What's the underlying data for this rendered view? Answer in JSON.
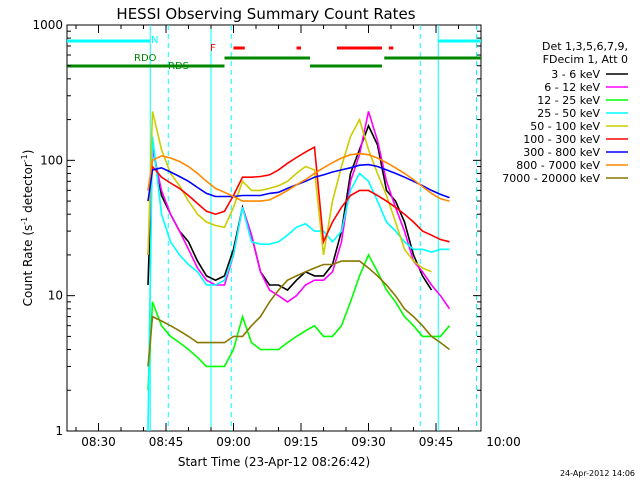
{
  "chart_data": {
    "type": "line",
    "title": "HESSI Observing Summary Count Rates",
    "xlabel": "Start Time (23-Apr-12 08:26:42)",
    "ylabel": "Count Rate (s",
    "ylabel_sup1": "-1",
    "ylabel_mid": " detector",
    "ylabel_sup2": "-1",
    "ylabel_end": ")",
    "yscale": "log",
    "ylim": [
      1,
      1000
    ],
    "xlim_minutes": [
      503,
      595
    ],
    "x_ticks": [
      {
        "label": "08:30",
        "minute": 510
      },
      {
        "label": "08:45",
        "minute": 525
      },
      {
        "label": "09:00",
        "minute": 540
      },
      {
        "label": "09:15",
        "minute": 555
      },
      {
        "label": "09:30",
        "minute": 570
      },
      {
        "label": "09:45",
        "minute": 585
      },
      {
        "label": "10:00",
        "minute": 600
      }
    ],
    "y_ticks": [
      {
        "label": "1",
        "value": 1
      },
      {
        "label": "10",
        "value": 10
      },
      {
        "label": "100",
        "value": 100
      },
      {
        "label": "1000",
        "value": 1000
      }
    ],
    "legend_header": [
      "Det 1,3,5,6,7,9,",
      "FDecim 1, Att 0"
    ],
    "series": [
      {
        "name": "3 - 6 keV",
        "color": "#000000",
        "x": [
          521,
          522,
          524,
          526,
          528,
          530,
          532,
          534,
          536,
          538,
          540,
          542,
          544,
          546,
          548,
          550,
          552,
          554,
          556,
          558,
          560,
          562,
          564,
          566,
          568,
          570,
          572,
          574,
          576,
          578,
          580,
          582,
          584
        ],
        "y": [
          12,
          130,
          55,
          40,
          30,
          25,
          18,
          14,
          13,
          14,
          22,
          45,
          28,
          15,
          12,
          12,
          11,
          13,
          15,
          14,
          14,
          17,
          30,
          80,
          120,
          180,
          130,
          60,
          50,
          35,
          20,
          14,
          11
        ]
      },
      {
        "name": "6 - 12 keV",
        "color": "#ff00ff",
        "x": [
          521,
          522,
          524,
          526,
          528,
          530,
          532,
          534,
          536,
          538,
          540,
          542,
          544,
          546,
          548,
          550,
          552,
          554,
          556,
          558,
          560,
          562,
          564,
          566,
          568,
          570,
          572,
          574,
          576,
          578,
          580,
          582,
          584,
          586,
          588
        ],
        "y": [
          20,
          120,
          60,
          40,
          30,
          22,
          16,
          13,
          12,
          12,
          20,
          45,
          28,
          15,
          11,
          10,
          9,
          10,
          12,
          13,
          13,
          15,
          25,
          70,
          110,
          230,
          140,
          70,
          45,
          30,
          18,
          15,
          12,
          10,
          8
        ]
      },
      {
        "name": "12 - 25 keV",
        "color": "#00ff00",
        "x": [
          521,
          522,
          524,
          526,
          528,
          530,
          532,
          534,
          536,
          538,
          540,
          542,
          544,
          546,
          548,
          550,
          552,
          554,
          556,
          558,
          560,
          562,
          564,
          566,
          568,
          570,
          572,
          574,
          576,
          578,
          580,
          582,
          584,
          586,
          588
        ],
        "y": [
          2,
          9,
          6,
          5,
          4.5,
          4,
          3.5,
          3,
          3,
          3,
          4,
          7,
          4.5,
          4,
          4,
          4,
          4.5,
          5,
          5.5,
          6,
          5,
          5,
          6,
          9,
          14,
          20,
          15,
          11,
          9,
          7,
          6,
          5,
          5,
          5,
          6
        ]
      },
      {
        "name": "25 - 50 keV",
        "color": "#00ffff",
        "x": [
          521,
          522,
          524,
          526,
          528,
          530,
          532,
          534,
          536,
          538,
          540,
          542,
          544,
          546,
          548,
          550,
          552,
          554,
          556,
          558,
          560,
          562,
          564,
          566,
          568,
          570,
          572,
          574,
          576,
          578,
          580,
          582,
          584,
          586,
          588
        ],
        "y": [
          1,
          150,
          40,
          25,
          20,
          17,
          15,
          12,
          12,
          13,
          20,
          45,
          25,
          24,
          24,
          25,
          28,
          32,
          34,
          30,
          30,
          25,
          30,
          60,
          80,
          70,
          50,
          35,
          30,
          25,
          22,
          22,
          21,
          22,
          22
        ]
      },
      {
        "name": "50 - 100 keV",
        "color": "#cccc00",
        "x": [
          521,
          522,
          524,
          526,
          528,
          530,
          532,
          534,
          536,
          538,
          540,
          542,
          544,
          546,
          548,
          550,
          552,
          554,
          556,
          558,
          560,
          562,
          564,
          566,
          568,
          570,
          572,
          574,
          576,
          578,
          580,
          582,
          584
        ],
        "y": [
          20,
          230,
          120,
          80,
          65,
          50,
          40,
          35,
          33,
          32,
          45,
          70,
          60,
          60,
          62,
          65,
          70,
          80,
          90,
          85,
          20,
          50,
          90,
          150,
          200,
          120,
          80,
          55,
          35,
          22,
          18,
          16,
          15
        ]
      },
      {
        "name": "100 - 300 keV",
        "color": "#ff0000",
        "x": [
          521,
          522,
          524,
          526,
          528,
          530,
          532,
          534,
          536,
          538,
          540,
          542,
          544,
          546,
          548,
          550,
          552,
          554,
          556,
          558,
          560,
          562,
          564,
          566,
          568,
          570,
          572,
          574,
          576,
          578,
          580,
          582,
          584,
          586,
          588
        ],
        "y": [
          60,
          90,
          75,
          68,
          62,
          55,
          48,
          42,
          40,
          42,
          55,
          75,
          75,
          76,
          78,
          85,
          95,
          105,
          115,
          125,
          25,
          35,
          45,
          55,
          60,
          60,
          55,
          50,
          45,
          40,
          35,
          30,
          28,
          26,
          25
        ]
      },
      {
        "name": "300 - 800 keV",
        "color": "#0000ff",
        "x": [
          521,
          522,
          524,
          526,
          528,
          530,
          532,
          534,
          536,
          538,
          540,
          542,
          544,
          546,
          548,
          550,
          552,
          554,
          556,
          558,
          560,
          562,
          564,
          566,
          568,
          570,
          572,
          574,
          576,
          578,
          580,
          582,
          584,
          586,
          588
        ],
        "y": [
          50,
          85,
          88,
          82,
          76,
          70,
          63,
          57,
          54,
          54,
          54,
          55,
          55,
          55,
          57,
          58,
          62,
          66,
          70,
          75,
          78,
          82,
          85,
          88,
          92,
          93,
          90,
          85,
          80,
          75,
          70,
          65,
          60,
          56,
          53
        ]
      },
      {
        "name": "800 - 7000 keV",
        "color": "#ff8800",
        "x": [
          521,
          522,
          524,
          526,
          528,
          530,
          532,
          534,
          536,
          538,
          540,
          542,
          544,
          546,
          548,
          550,
          552,
          554,
          556,
          558,
          560,
          562,
          564,
          566,
          568,
          570,
          572,
          574,
          576,
          578,
          580,
          582,
          584,
          586,
          588
        ],
        "y": [
          60,
          100,
          108,
          104,
          98,
          90,
          80,
          70,
          62,
          58,
          54,
          50,
          50,
          50,
          51,
          55,
          60,
          66,
          72,
          80,
          88,
          96,
          104,
          110,
          112,
          110,
          104,
          96,
          88,
          80,
          72,
          64,
          57,
          52,
          50
        ]
      },
      {
        "name": "7000 - 20000 keV",
        "color": "#887700",
        "x": [
          521,
          522,
          524,
          526,
          528,
          530,
          532,
          534,
          536,
          538,
          540,
          542,
          544,
          546,
          548,
          550,
          552,
          554,
          556,
          558,
          560,
          562,
          564,
          566,
          568,
          570,
          572,
          574,
          576,
          578,
          580,
          582,
          584,
          586,
          588
        ],
        "y": [
          3,
          7,
          6.5,
          6,
          5.5,
          5,
          4.5,
          4.5,
          4.5,
          4.5,
          5,
          5,
          6,
          7,
          9,
          11,
          13,
          14,
          15,
          16,
          17,
          17,
          18,
          18,
          18,
          16,
          14,
          12,
          10,
          8,
          7,
          6,
          5,
          4.5,
          4
        ]
      }
    ],
    "flags": [
      {
        "label": "N",
        "color": "#00ffff"
      },
      {
        "label": "RDO",
        "color": "#008800"
      },
      {
        "label": "RDS",
        "color": "#008800"
      },
      {
        "label": "F",
        "color": "#ff0000"
      }
    ],
    "flag_bars": {
      "cyan": [
        [
          503,
          521.5
        ],
        [
          585.5,
          595
        ]
      ],
      "green_upper": [
        [
          538,
          557
        ],
        [
          573.5,
          595
        ]
      ],
      "green_lower": [
        [
          503,
          538
        ],
        [
          557,
          573
        ]
      ],
      "red": [
        [
          540,
          542.5
        ],
        [
          554,
          555
        ],
        [
          563,
          573
        ],
        [
          574.5,
          575.5
        ]
      ]
    },
    "vertical_lines": {
      "cyan_solid": [
        521.5,
        535,
        585.5
      ],
      "cyan_dashed": [
        525.5,
        539.5,
        581.5,
        594
      ]
    },
    "timestamp": "24-Apr-2012 14:06",
    "grid": false,
    "legend_position": "right"
  }
}
